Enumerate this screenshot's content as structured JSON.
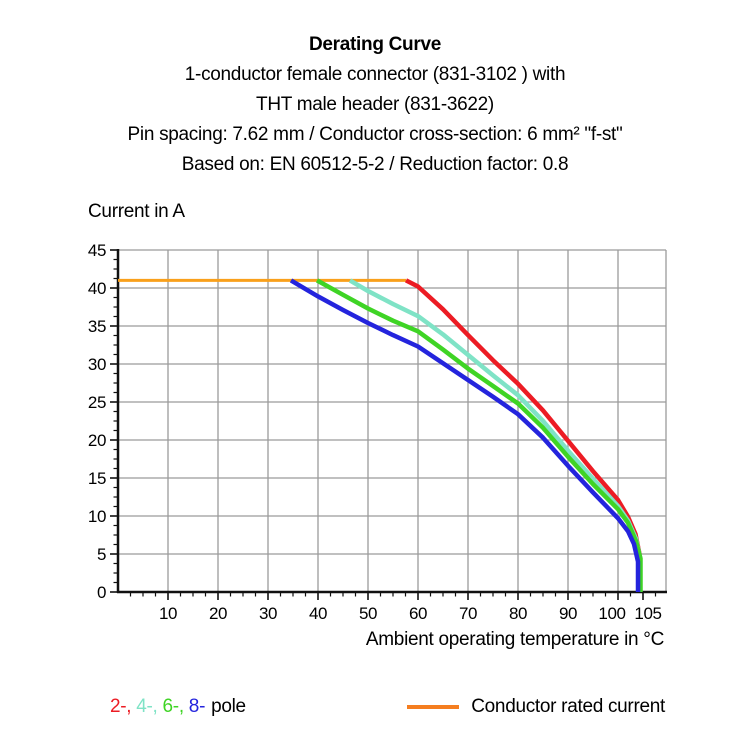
{
  "header": {
    "title": "Derating Curve",
    "subtitles": [
      "1-conductor female connector (831-3102 ) with",
      "THT male header (831-3622)",
      "Pin spacing: 7.62 mm / Conductor cross-section: 6 mm² \"f-st\"",
      "Based on: EN 60512-5-2 / Reduction factor: 0.8"
    ]
  },
  "chart_data": {
    "type": "line",
    "title": "Derating Curve",
    "ylabel": "Current in A",
    "xlabel": "Ambient operating temperature in °C",
    "xlim": [
      0,
      109.6
    ],
    "ylim": [
      0,
      45
    ],
    "x_major_ticks": [
      10,
      20,
      30,
      40,
      50,
      60,
      70,
      80,
      90,
      100,
      105
    ],
    "x_gridlines": [
      10,
      20,
      30,
      40,
      50,
      60,
      70,
      80,
      90,
      100
    ],
    "y_major_ticks": [
      0,
      5,
      10,
      15,
      20,
      25,
      30,
      35,
      40,
      45
    ],
    "y_gridlines": [
      5,
      10,
      15,
      20,
      25,
      30,
      35,
      40,
      45
    ],
    "x_minor_step": 2.5,
    "y_minor_step": 1.25,
    "grid": true,
    "grid_color": "#9b9b9b",
    "axis_color": "#111111",
    "legend_position": "bottom",
    "series": [
      {
        "name": "Conductor rated current",
        "color": "#f9a01b",
        "width": 3,
        "points": [
          [
            0,
            41
          ],
          [
            57.6,
            41
          ]
        ]
      },
      {
        "name": "2-pole",
        "color": "#ec1c24",
        "width": 4.5,
        "points": [
          [
            57.6,
            41
          ],
          [
            60,
            40.2
          ],
          [
            65,
            37.2
          ],
          [
            70,
            33.8
          ],
          [
            75,
            30.5
          ],
          [
            80,
            27.4
          ],
          [
            85,
            23.9
          ],
          [
            90,
            19.9
          ],
          [
            95,
            15.9
          ],
          [
            100,
            12.1
          ],
          [
            102,
            9.9
          ],
          [
            103.5,
            7.6
          ],
          [
            104.3,
            5
          ],
          [
            104.3,
            0
          ]
        ]
      },
      {
        "name": "4-pole",
        "color": "#7fe3c6",
        "width": 4.5,
        "points": [
          [
            46.4,
            41
          ],
          [
            50,
            39.6
          ],
          [
            55,
            37.9
          ],
          [
            60,
            36.3
          ],
          [
            65,
            33.9
          ],
          [
            70,
            31.2
          ],
          [
            75,
            28.5
          ],
          [
            80,
            25.9
          ],
          [
            85,
            22.5
          ],
          [
            90,
            18.6
          ],
          [
            95,
            14.9
          ],
          [
            100,
            11.3
          ],
          [
            102,
            9.4
          ],
          [
            103.6,
            7
          ],
          [
            104.4,
            4.6
          ],
          [
            104.4,
            0
          ]
        ]
      },
      {
        "name": "6-pole",
        "color": "#3fd425",
        "width": 4.5,
        "points": [
          [
            39.8,
            41
          ],
          [
            45,
            39.1
          ],
          [
            50,
            37.3
          ],
          [
            55,
            35.7
          ],
          [
            60,
            34.3
          ],
          [
            65,
            31.9
          ],
          [
            70,
            29.4
          ],
          [
            75,
            27.1
          ],
          [
            80,
            24.8
          ],
          [
            85,
            21.6
          ],
          [
            90,
            17.8
          ],
          [
            95,
            14.2
          ],
          [
            100,
            10.9
          ],
          [
            102,
            9.1
          ],
          [
            103.6,
            6.7
          ],
          [
            104.5,
            4.4
          ],
          [
            104.5,
            0
          ]
        ]
      },
      {
        "name": "8-pole",
        "color": "#2424dd",
        "width": 4.5,
        "points": [
          [
            34.6,
            41
          ],
          [
            40,
            38.9
          ],
          [
            45,
            37.1
          ],
          [
            50,
            35.4
          ],
          [
            55,
            33.8
          ],
          [
            60,
            32.3
          ],
          [
            65,
            30.1
          ],
          [
            70,
            27.9
          ],
          [
            75,
            25.7
          ],
          [
            80,
            23.4
          ],
          [
            85,
            20.3
          ],
          [
            90,
            16.6
          ],
          [
            95,
            13.1
          ],
          [
            100,
            9.7
          ],
          [
            102,
            8
          ],
          [
            103.2,
            6.3
          ],
          [
            104,
            4
          ],
          [
            104,
            0
          ]
        ]
      }
    ]
  },
  "legend": {
    "poles": [
      {
        "label": "2-",
        "color": "#ec1c24"
      },
      {
        "label": "4-",
        "color": "#7fe3c6"
      },
      {
        "label": "6-",
        "color": "#3fd425"
      },
      {
        "label": "8-",
        "color": "#2424dd"
      }
    ],
    "separator": ", ",
    "suffix": "pole",
    "rated_label": "Conductor rated current",
    "rated_swatch_color": "#f57e20"
  }
}
